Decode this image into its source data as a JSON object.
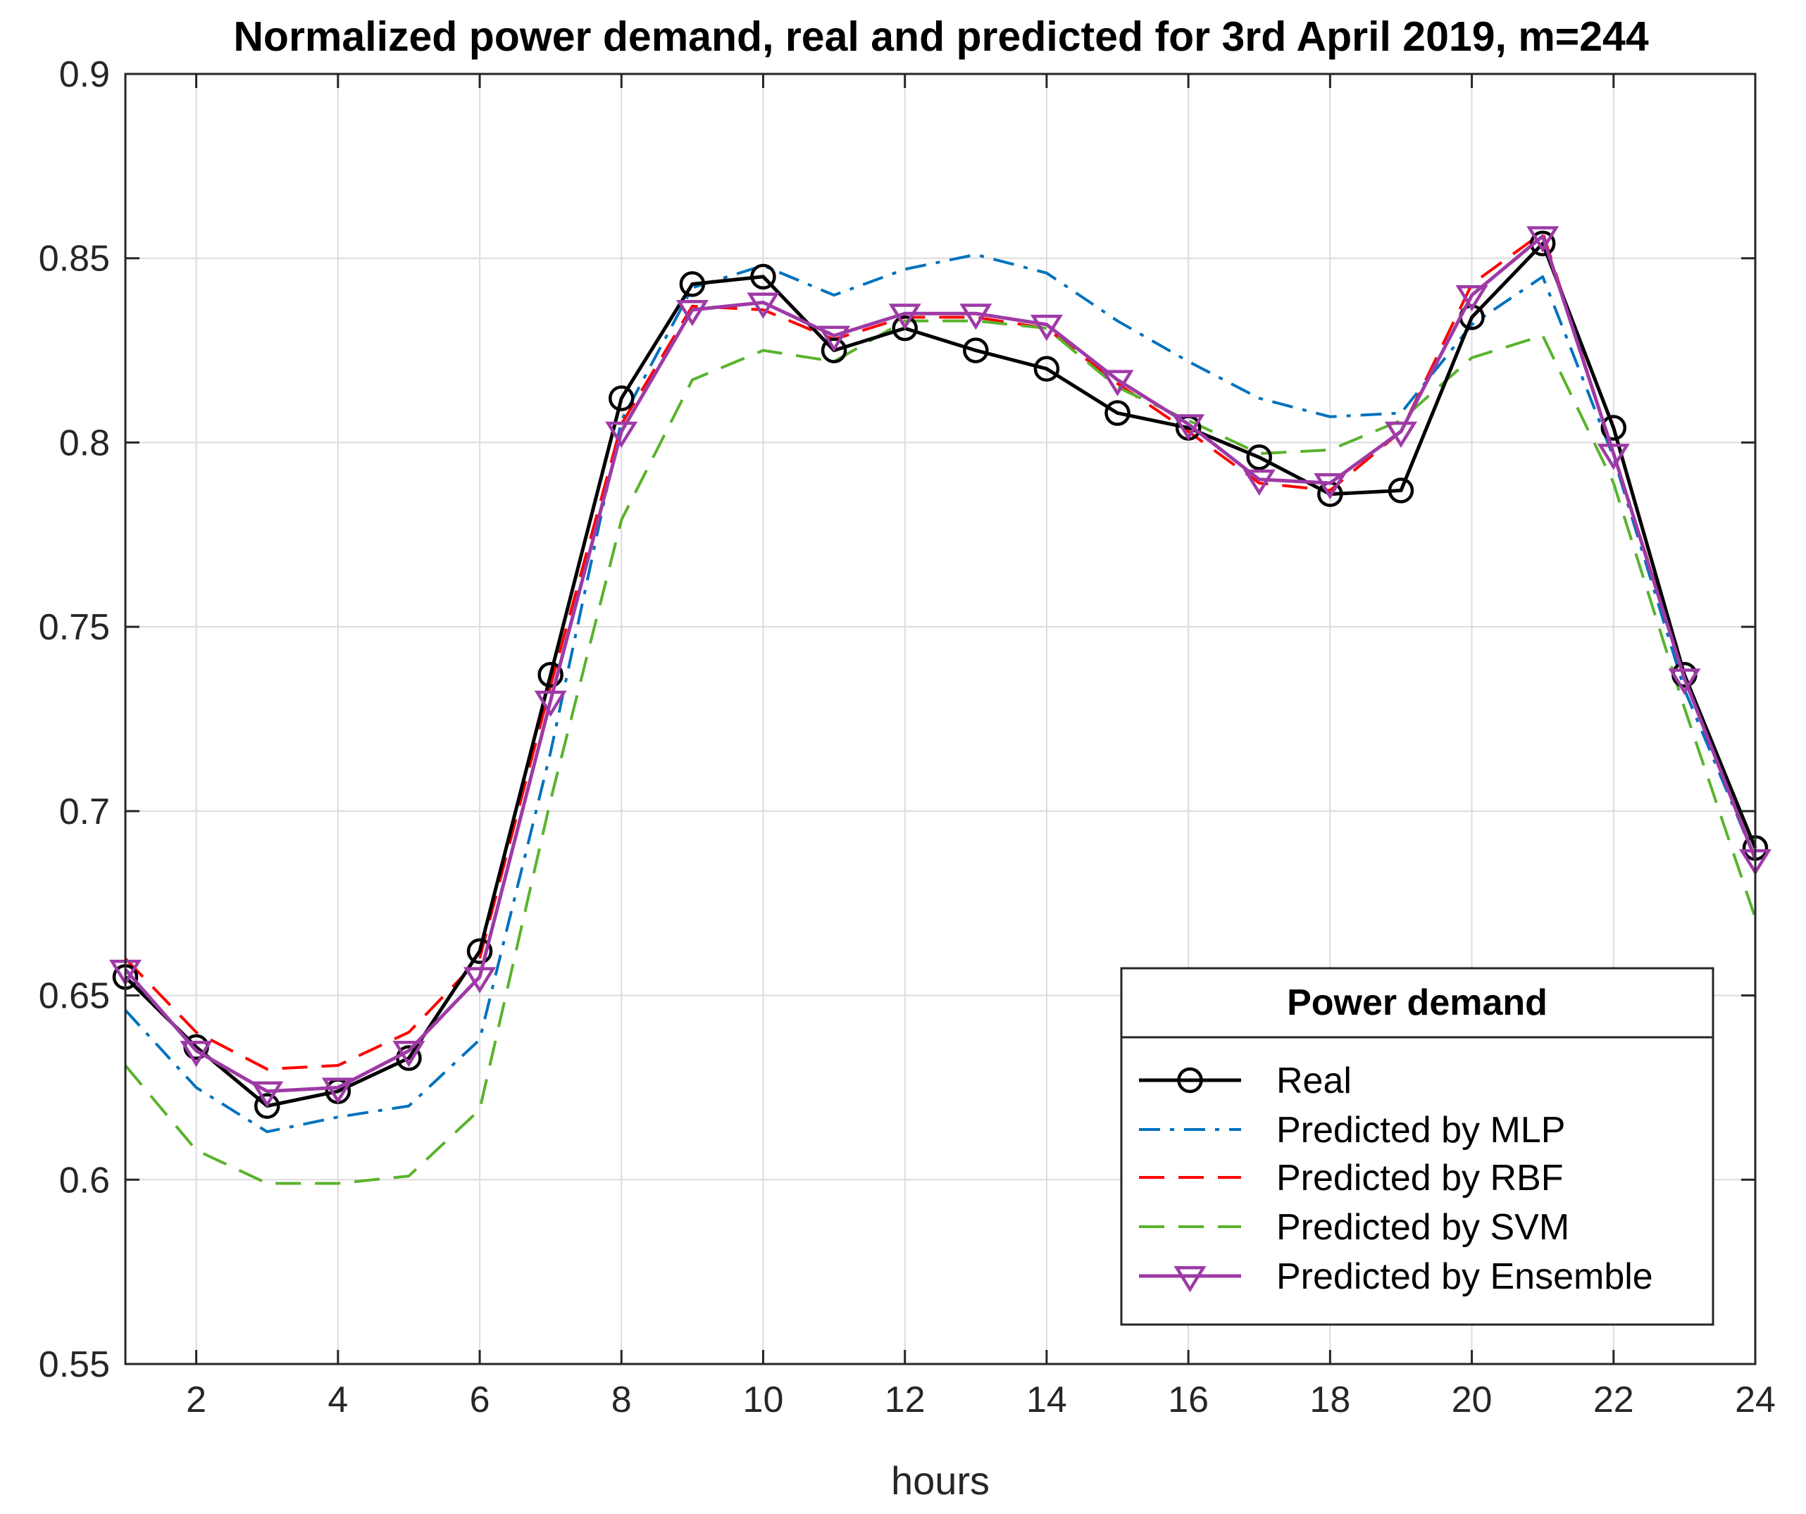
{
  "chart_data": {
    "type": "line",
    "title": "Normalized power demand, real and predicted for 3rd April 2019, m=244",
    "xlabel": "hours",
    "ylabel": "",
    "xlim": [
      1,
      24
    ],
    "ylim": [
      0.55,
      0.9
    ],
    "grid": true,
    "xticks": [
      2,
      4,
      6,
      8,
      10,
      12,
      14,
      16,
      18,
      20,
      22,
      24
    ],
    "xtick_labels": [
      "2",
      "4",
      "6",
      "8",
      "10",
      "12",
      "14",
      "16",
      "18",
      "20",
      "22",
      "24"
    ],
    "yticks": [
      0.55,
      0.6,
      0.65,
      0.7,
      0.75,
      0.8,
      0.85,
      0.9
    ],
    "ytick_labels": [
      "0.55",
      "0.6",
      "0.65",
      "0.7",
      "0.75",
      "0.8",
      "0.85",
      "0.9"
    ],
    "x": [
      1,
      2,
      3,
      4,
      5,
      6,
      7,
      8,
      9,
      10,
      11,
      12,
      13,
      14,
      15,
      16,
      17,
      18,
      19,
      20,
      21,
      22,
      23,
      24
    ],
    "legend": {
      "title": "Power demand",
      "location": "bottom-right"
    },
    "series": [
      {
        "name": "Real",
        "color": "#000000",
        "line_style": "solid",
        "marker": "circle",
        "values": [
          0.655,
          0.636,
          0.62,
          0.624,
          0.633,
          0.662,
          0.737,
          0.812,
          0.843,
          0.845,
          0.825,
          0.831,
          0.825,
          0.82,
          0.808,
          0.804,
          0.796,
          0.786,
          0.787,
          0.834,
          0.854,
          0.804,
          0.737,
          0.69
        ]
      },
      {
        "name": "Predicted by MLP",
        "color": "#0072BD",
        "line_style": "dashdot",
        "marker": "none",
        "values": [
          0.646,
          0.625,
          0.613,
          0.617,
          0.62,
          0.638,
          0.716,
          0.806,
          0.842,
          0.848,
          0.84,
          0.847,
          0.851,
          0.846,
          0.833,
          0.822,
          0.812,
          0.807,
          0.808,
          0.832,
          0.845,
          0.796,
          0.733,
          0.687
        ]
      },
      {
        "name": "Predicted by RBF",
        "color": "#FF0000",
        "line_style": "dashed",
        "marker": "none",
        "values": [
          0.66,
          0.64,
          0.63,
          0.631,
          0.64,
          0.66,
          0.734,
          0.805,
          0.837,
          0.836,
          0.828,
          0.834,
          0.834,
          0.831,
          0.816,
          0.803,
          0.789,
          0.787,
          0.803,
          0.843,
          0.857,
          0.797,
          0.737,
          0.687
        ]
      },
      {
        "name": "Predicted by SVM",
        "color": "#59B32C",
        "line_style": "dashed",
        "marker": "none",
        "values": [
          0.631,
          0.608,
          0.599,
          0.599,
          0.601,
          0.619,
          0.703,
          0.779,
          0.817,
          0.825,
          0.822,
          0.833,
          0.833,
          0.831,
          0.815,
          0.806,
          0.797,
          0.798,
          0.806,
          0.823,
          0.829,
          0.789,
          0.728,
          0.671
        ]
      },
      {
        "name": "Predicted by Ensemble",
        "color": "#9E3AA6",
        "line_style": "solid",
        "marker": "triangle-down",
        "values": [
          0.657,
          0.635,
          0.624,
          0.625,
          0.635,
          0.655,
          0.73,
          0.803,
          0.836,
          0.838,
          0.829,
          0.835,
          0.835,
          0.832,
          0.817,
          0.805,
          0.79,
          0.789,
          0.803,
          0.84,
          0.856,
          0.797,
          0.736,
          0.687
        ]
      }
    ]
  }
}
